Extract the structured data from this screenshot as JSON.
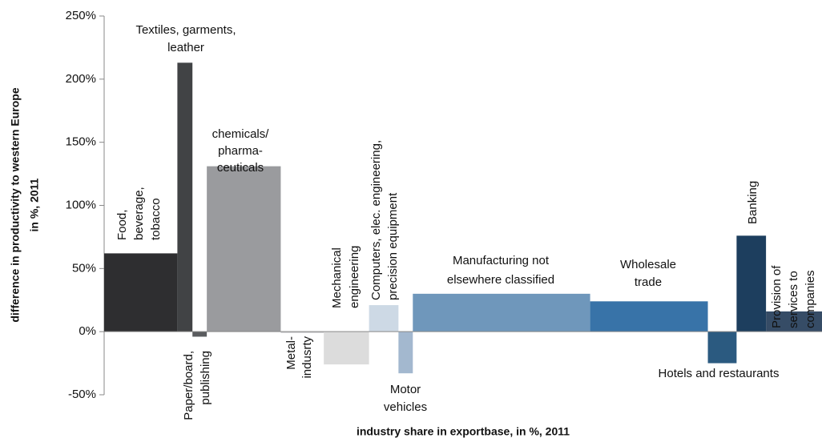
{
  "chart_data": {
    "type": "variable-width-bar",
    "y_label": [
      "difference in productivity to western Europe",
      "in %, 2011"
    ],
    "x_label": "industry share in exportbase, in %, 2011",
    "categories": [
      [
        "Food,",
        "beverage,",
        "tobacco"
      ],
      [
        "Textiles, garments,",
        "leather"
      ],
      [
        "Paper/board,",
        "publishing"
      ],
      [
        "chemicals/",
        "pharma-",
        "ceuticals"
      ],
      [
        "Metal-",
        "indusrty"
      ],
      [
        "Mechanical",
        "engineering"
      ],
      [
        "Computers, elec. engineering,",
        "precision equipment"
      ],
      [
        "Motor",
        "vehicles"
      ],
      [
        "Manufacturing not",
        "elsewhere classified"
      ],
      [
        "Wholesale",
        "trade"
      ],
      [
        "Hotels and restaurants"
      ],
      [
        "Banking"
      ],
      [
        "Provision of",
        "services to",
        "companies"
      ]
    ],
    "values": [
      62,
      213,
      -4,
      131,
      -1,
      -26,
      21,
      -33,
      30,
      24,
      -25,
      76,
      16
    ],
    "widths": [
      10.2,
      2.1,
      2.0,
      10.3,
      6.0,
      6.3,
      4.1,
      2.0,
      24.7,
      16.4,
      4.0,
      4.1,
      7.8
    ],
    "colors": [
      "#2e2e30",
      "#414345",
      "#5a5c5f",
      "#9a9b9e",
      "#c9c9cb",
      "#dcdcdc",
      "#cdd9e5",
      "#a3b8cf",
      "#6f97bb",
      "#3873a8",
      "#2b5a80",
      "#1d3e5e",
      "#364c66"
    ],
    "xlim": [
      0,
      100
    ],
    "ylim": [
      -50,
      250
    ],
    "yticks": [
      {
        "value": -50,
        "label": "-50%"
      },
      {
        "value": 0,
        "label": "0%"
      },
      {
        "value": 50,
        "label": "50%"
      },
      {
        "value": 100,
        "label": "100%"
      },
      {
        "value": 150,
        "label": "150%"
      },
      {
        "value": 200,
        "label": "200%"
      },
      {
        "value": 250,
        "label": "250%"
      }
    ]
  }
}
